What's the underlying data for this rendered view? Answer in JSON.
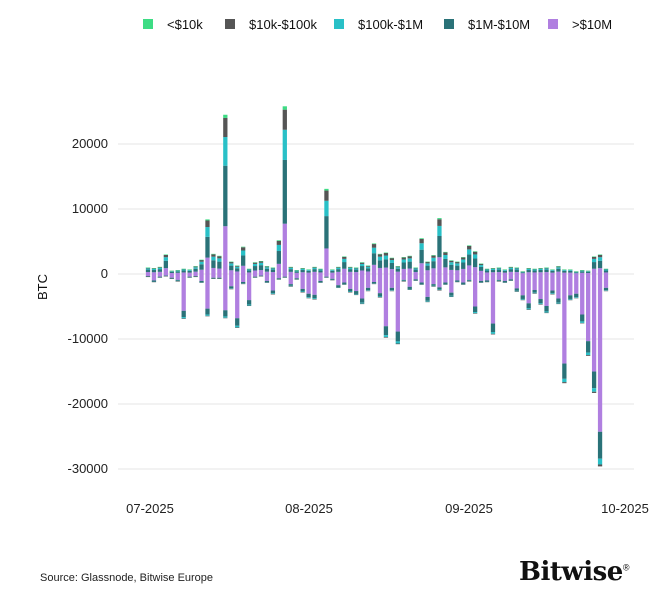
{
  "colors": {
    "lt10k": "#3ddc84",
    "10k_100k": "#555555",
    "100k_1m": "#29c0c7",
    "1m_10m": "#2a7278",
    "gt10m": "#b07fe0",
    "grid": "#e6e6e6"
  },
  "legend": [
    {
      "label": "<$10k",
      "color": "#3ddc84"
    },
    {
      "label": "$10k-$100k",
      "color": "#555555"
    },
    {
      "label": "$100k-$1M",
      "color": "#29c0c7"
    },
    {
      "label": "$1M-$10M",
      "color": "#2a7278"
    },
    {
      "label": ">$10M",
      "color": "#b07fe0"
    }
  ],
  "source": "Source: Glassnode, Bitwise Europe",
  "logo": "Bitwise",
  "logo_mark": "®",
  "chart_data": {
    "type": "bar",
    "stacked": true,
    "ylabel": "BTC",
    "ylim": [
      -32000,
      27000
    ],
    "yticks": [
      20000,
      10000,
      0,
      -10000,
      -20000,
      -30000
    ],
    "ytick_labels": [
      "20000",
      "10000",
      "0",
      "-10000",
      "-20000",
      "-30000"
    ],
    "xtick_labels": [
      "07-2025",
      "08-2025",
      "09-2025",
      "10-2025"
    ],
    "x_start": "2025-07-01",
    "x_end": "2025-10-01",
    "grid": true,
    "legend_position": "top",
    "series": [
      {
        "name": "<$10k",
        "color": "#3ddc84"
      },
      {
        "name": "$10k-$100k",
        "color": "#555555"
      },
      {
        "name": "$100k-$1M",
        "color": "#29c0c7"
      },
      {
        "name": "$1M-$10M",
        "color": "#2a7278"
      },
      {
        "name": ">$10M",
        "color": "#b07fe0"
      }
    ],
    "net_flows": [
      [
        1000,
        -400
      ],
      [
        900,
        -1200
      ],
      [
        1100,
        -500
      ],
      [
        3000,
        -300
      ],
      [
        500,
        -700
      ],
      [
        600,
        -1100
      ],
      [
        800,
        -6900
      ],
      [
        700,
        -500
      ],
      [
        1200,
        -400
      ],
      [
        2200,
        -1300
      ],
      [
        8400,
        -6500
      ],
      [
        3100,
        -700
      ],
      [
        2800,
        -700
      ],
      [
        24500,
        -6800
      ],
      [
        1900,
        -2300
      ],
      [
        1300,
        -8300
      ],
      [
        4200,
        -1500
      ],
      [
        800,
        -4900
      ],
      [
        1800,
        -500
      ],
      [
        2000,
        -300
      ],
      [
        1200,
        -1300
      ],
      [
        1000,
        -3100
      ],
      [
        5200,
        -800
      ],
      [
        25800,
        -500
      ],
      [
        1100,
        -1900
      ],
      [
        600,
        -800
      ],
      [
        900,
        -2800
      ],
      [
        700,
        -3700
      ],
      [
        1100,
        -3900
      ],
      [
        800,
        -1300
      ],
      [
        13100,
        -500
      ],
      [
        700,
        -900
      ],
      [
        1100,
        -2100
      ],
      [
        2700,
        -1600
      ],
      [
        1100,
        -2800
      ],
      [
        1000,
        -3200
      ],
      [
        1800,
        -4600
      ],
      [
        1300,
        -2600
      ],
      [
        4700,
        -1500
      ],
      [
        3100,
        -3600
      ],
      [
        3300,
        -9800
      ],
      [
        2500,
        -2600
      ],
      [
        1200,
        -10800
      ],
      [
        2600,
        -1100
      ],
      [
        2800,
        -2400
      ],
      [
        1000,
        -1000
      ],
      [
        5500,
        -1600
      ],
      [
        1900,
        -4300
      ],
      [
        2900,
        -1900
      ],
      [
        8600,
        -2500
      ],
      [
        3400,
        -1600
      ],
      [
        2100,
        -3500
      ],
      [
        1900,
        -1200
      ],
      [
        2600,
        -1600
      ],
      [
        4400,
        -1100
      ],
      [
        3500,
        -6100
      ],
      [
        1600,
        -1300
      ],
      [
        800,
        -1200
      ],
      [
        900,
        -9300
      ],
      [
        1000,
        -1100
      ],
      [
        700,
        -1300
      ],
      [
        1100,
        -1000
      ],
      [
        1000,
        -2700
      ],
      [
        400,
        -4000
      ],
      [
        900,
        -5500
      ],
      [
        800,
        -3000
      ],
      [
        900,
        -4700
      ],
      [
        1000,
        -6000
      ],
      [
        700,
        -3100
      ],
      [
        1200,
        -4600
      ],
      [
        700,
        -16800
      ],
      [
        700,
        -4000
      ],
      [
        400,
        -3700
      ],
      [
        600,
        -7600
      ],
      [
        500,
        -12600
      ],
      [
        2700,
        -18300
      ],
      [
        3000,
        -29600
      ],
      [
        800,
        -2600
      ]
    ]
  }
}
